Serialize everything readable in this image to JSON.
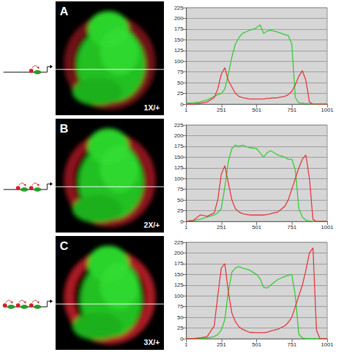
{
  "chart_data": [
    {
      "type": "line",
      "title": "A",
      "annotation": "1X/+",
      "x": [
        1,
        50,
        100,
        150,
        200,
        225,
        250,
        275,
        300,
        325,
        350,
        375,
        400,
        450,
        500,
        525,
        550,
        575,
        600,
        650,
        700,
        725,
        750,
        775,
        800,
        825,
        850,
        875,
        900,
        925,
        950,
        1001
      ],
      "xlim": [
        1,
        1001
      ],
      "xticks": [
        1,
        251,
        501,
        751,
        1001
      ],
      "ylim": [
        0,
        225
      ],
      "yticks": [
        0,
        25,
        50,
        75,
        100,
        125,
        150,
        175,
        200,
        225
      ],
      "grid": true,
      "series": [
        {
          "color": "#2ecc2e",
          "values": [
            2,
            3,
            5,
            10,
            18,
            22,
            25,
            35,
            70,
            110,
            140,
            155,
            165,
            172,
            178,
            185,
            165,
            170,
            172,
            168,
            162,
            160,
            140,
            15,
            3,
            2,
            1,
            1,
            0,
            0,
            0,
            0
          ]
        },
        {
          "color": "#e8303a",
          "values": [
            0,
            0,
            2,
            5,
            15,
            35,
            70,
            85,
            55,
            40,
            25,
            18,
            15,
            12,
            12,
            12,
            12,
            13,
            14,
            15,
            18,
            22,
            30,
            45,
            65,
            78,
            55,
            5,
            0,
            0,
            0,
            0
          ]
        }
      ]
    },
    {
      "type": "line",
      "title": "B",
      "annotation": "2X/+",
      "x": [
        1,
        50,
        100,
        150,
        200,
        225,
        250,
        275,
        300,
        325,
        350,
        375,
        400,
        450,
        500,
        525,
        550,
        575,
        600,
        650,
        700,
        725,
        750,
        775,
        800,
        825,
        850,
        875,
        900,
        925,
        950,
        1001
      ],
      "xlim": [
        1,
        1001
      ],
      "xticks": [
        1,
        251,
        501,
        751,
        1001
      ],
      "ylim": [
        0,
        225
      ],
      "yticks": [
        0,
        25,
        50,
        75,
        100,
        125,
        150,
        175,
        200,
        225
      ],
      "grid": true,
      "series": [
        {
          "color": "#2ecc2e",
          "values": [
            0,
            2,
            5,
            10,
            15,
            20,
            30,
            80,
            140,
            170,
            178,
            175,
            178,
            172,
            170,
            160,
            150,
            160,
            165,
            155,
            150,
            145,
            145,
            120,
            30,
            10,
            3,
            1,
            0,
            0,
            0,
            0
          ]
        },
        {
          "color": "#e8303a",
          "values": [
            0,
            2,
            15,
            12,
            20,
            50,
            110,
            130,
            90,
            50,
            30,
            22,
            18,
            15,
            15,
            15,
            15,
            16,
            18,
            22,
            35,
            50,
            75,
            100,
            125,
            145,
            155,
            100,
            5,
            0,
            0,
            0
          ]
        }
      ]
    },
    {
      "type": "line",
      "title": "C",
      "annotation": "3X/+",
      "x": [
        1,
        50,
        100,
        150,
        200,
        225,
        250,
        275,
        300,
        325,
        350,
        375,
        400,
        450,
        500,
        525,
        550,
        575,
        600,
        650,
        700,
        725,
        750,
        775,
        800,
        825,
        850,
        875,
        900,
        925,
        950,
        1001
      ],
      "xlim": [
        1,
        1001
      ],
      "xticks": [
        1,
        251,
        501,
        751,
        1001
      ],
      "ylim": [
        0,
        225
      ],
      "yticks": [
        0,
        25,
        50,
        75,
        100,
        125,
        150,
        175,
        200,
        225
      ],
      "grid": true,
      "series": [
        {
          "color": "#2ecc2e",
          "values": [
            0,
            0,
            0,
            2,
            5,
            10,
            20,
            45,
            110,
            155,
            165,
            168,
            165,
            160,
            150,
            140,
            120,
            118,
            125,
            138,
            145,
            148,
            150,
            100,
            10,
            2,
            0,
            0,
            0,
            0,
            0,
            0
          ]
        },
        {
          "color": "#e8303a",
          "values": [
            0,
            0,
            2,
            5,
            30,
            100,
            165,
            175,
            110,
            60,
            40,
            28,
            22,
            15,
            14,
            14,
            14,
            15,
            18,
            22,
            30,
            38,
            50,
            75,
            100,
            125,
            160,
            200,
            212,
            20,
            0,
            0
          ]
        }
      ]
    }
  ]
}
